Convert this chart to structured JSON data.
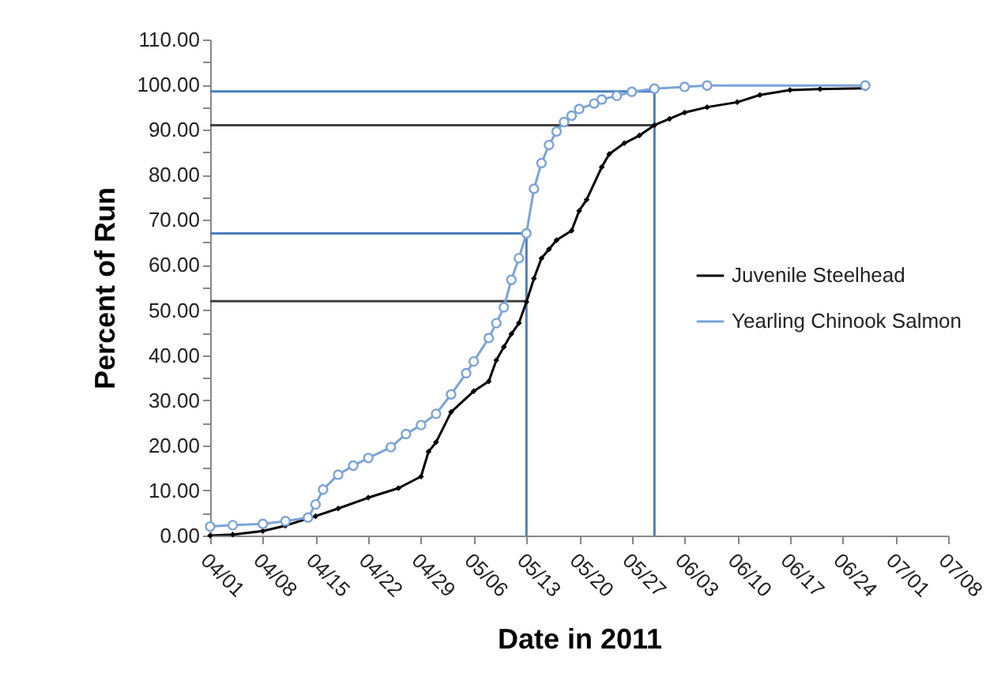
{
  "chart_data": {
    "type": "line",
    "xlabel": "Date in 2011",
    "ylabel": "Percent of Run",
    "legend": "right",
    "xlim": [
      "2011-04-01",
      "2011-07-08"
    ],
    "xticks": [
      {
        "value": "2011-04-01",
        "label": "04/01"
      },
      {
        "value": "2011-04-08",
        "label": "04/08"
      },
      {
        "value": "2011-04-15",
        "label": "04/15"
      },
      {
        "value": "2011-04-22",
        "label": "04/22"
      },
      {
        "value": "2011-04-29",
        "label": "04/29"
      },
      {
        "value": "2011-05-06",
        "label": "05/06"
      },
      {
        "value": "2011-05-13",
        "label": "05/13"
      },
      {
        "value": "2011-05-20",
        "label": "05/20"
      },
      {
        "value": "2011-05-27",
        "label": "05/27"
      },
      {
        "value": "2011-06-03",
        "label": "06/03"
      },
      {
        "value": "2011-06-10",
        "label": "06/10"
      },
      {
        "value": "2011-06-17",
        "label": "06/17"
      },
      {
        "value": "2011-06-24",
        "label": "06/24"
      },
      {
        "value": "2011-07-01",
        "label": "07/01"
      },
      {
        "value": "2011-07-08",
        "label": "07/08"
      }
    ],
    "ylim": [
      0,
      110
    ],
    "yticks": [
      {
        "value": 0,
        "label": "0.00"
      },
      {
        "value": 5,
        "label": null
      },
      {
        "value": 10,
        "label": "10.00"
      },
      {
        "value": 15,
        "label": null
      },
      {
        "value": 20,
        "label": "20.00"
      },
      {
        "value": 25,
        "label": null
      },
      {
        "value": 30,
        "label": "30.00"
      },
      {
        "value": 35,
        "label": null
      },
      {
        "value": 40,
        "label": "40.00"
      },
      {
        "value": 45,
        "label": null
      },
      {
        "value": 50,
        "label": "50.00"
      },
      {
        "value": 55,
        "label": null
      },
      {
        "value": 60,
        "label": "60.00"
      },
      {
        "value": 65,
        "label": null
      },
      {
        "value": 70,
        "label": "70.00"
      },
      {
        "value": 75,
        "label": null
      },
      {
        "value": 80,
        "label": "80.00"
      },
      {
        "value": 85,
        "label": null
      },
      {
        "value": 90,
        "label": "90.00"
      },
      {
        "value": 95,
        "label": null
      },
      {
        "value": 100,
        "label": "100.00"
      },
      {
        "value": 105,
        "label": null
      },
      {
        "value": 110,
        "label": "110.00"
      }
    ],
    "series": [
      {
        "color": "#4a7ebb",
        "marker": "none",
        "x": [
          "2011-04-01",
          "2011-05-13",
          "2011-05-13"
        ],
        "values": [
          67,
          67,
          0
        ]
      },
      {
        "color": "#4a7ebb",
        "marker": "none",
        "x": [
          "2011-04-01",
          "2011-05-30",
          "2011-05-30"
        ],
        "values": [
          98.5,
          98.5,
          0
        ]
      },
      {
        "color": "#404040",
        "marker": "none",
        "x": [
          "2011-04-01",
          "2011-05-13"
        ],
        "values": [
          52,
          52
        ]
      },
      {
        "color": "#404040",
        "marker": "none",
        "x": [
          "2011-04-01",
          "2011-05-30"
        ],
        "values": [
          91,
          91
        ]
      },
      {
        "name": "Juvenile Steelhead",
        "color": "#000000",
        "marker": "diamond",
        "x": [
          "2011-04-01",
          "2011-04-04",
          "2011-04-08",
          "2011-04-11",
          "2011-04-15",
          "2011-04-18",
          "2011-04-22",
          "2011-04-26",
          "2011-04-29",
          "2011-04-30",
          "2011-05-01",
          "2011-05-03",
          "2011-05-06",
          "2011-05-08",
          "2011-05-09",
          "2011-05-10",
          "2011-05-11",
          "2011-05-12",
          "2011-05-13",
          "2011-05-14",
          "2011-05-15",
          "2011-05-16",
          "2011-05-17",
          "2011-05-19",
          "2011-05-20",
          "2011-05-21",
          "2011-05-23",
          "2011-05-24",
          "2011-05-26",
          "2011-05-28",
          "2011-05-30",
          "2011-06-01",
          "2011-06-03",
          "2011-06-06",
          "2011-06-10",
          "2011-06-13",
          "2011-06-17",
          "2011-06-21",
          "2011-06-27"
        ],
        "values": [
          0,
          0.2,
          1,
          2.2,
          4.3,
          6,
          8.4,
          10.5,
          13.1,
          18.6,
          20.7,
          27.4,
          32,
          34.2,
          38.9,
          41.8,
          44.7,
          47.1,
          51.8,
          57,
          61.5,
          63.5,
          65.5,
          67.6,
          72,
          74.5,
          81.7,
          84.6,
          87,
          88.7,
          91,
          92.4,
          93.8,
          95,
          96.1,
          97.7,
          98.8,
          99,
          99.2
        ]
      },
      {
        "name": "Yearling Chinook Salmon",
        "color": "#7ba3d8",
        "marker": "circle",
        "x": [
          "2011-04-01",
          "2011-04-04",
          "2011-04-08",
          "2011-04-11",
          "2011-04-14",
          "2011-04-15",
          "2011-04-16",
          "2011-04-18",
          "2011-04-20",
          "2011-04-22",
          "2011-04-25",
          "2011-04-27",
          "2011-04-29",
          "2011-05-01",
          "2011-05-03",
          "2011-05-05",
          "2011-05-06",
          "2011-05-08",
          "2011-05-09",
          "2011-05-10",
          "2011-05-11",
          "2011-05-12",
          "2011-05-13",
          "2011-05-14",
          "2011-05-15",
          "2011-05-16",
          "2011-05-17",
          "2011-05-18",
          "2011-05-19",
          "2011-05-20",
          "2011-05-22",
          "2011-05-23",
          "2011-05-25",
          "2011-05-27",
          "2011-05-30",
          "2011-06-03",
          "2011-06-06",
          "2011-06-27"
        ],
        "values": [
          2,
          2.3,
          2.6,
          3.2,
          4,
          6.9,
          10.2,
          13.5,
          15.5,
          17.2,
          19.6,
          22.5,
          24.5,
          27,
          31.3,
          36,
          38.6,
          43.8,
          47.1,
          50.6,
          56.7,
          61.5,
          67,
          76.9,
          82.6,
          86.6,
          89.6,
          91.7,
          93.1,
          94.6,
          95.8,
          96.7,
          97.5,
          98.4,
          99.1,
          99.5,
          99.8,
          99.8
        ]
      }
    ]
  }
}
